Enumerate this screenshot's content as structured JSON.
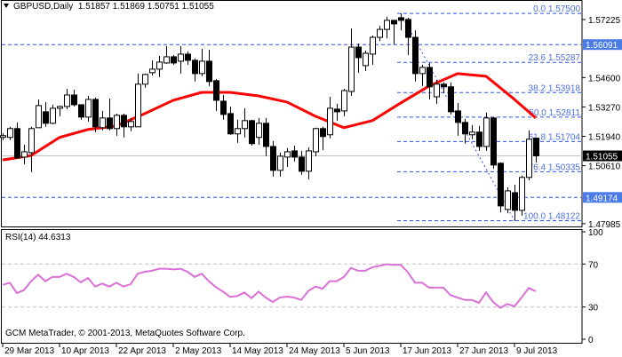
{
  "header": {
    "symbol_timeframe": "GBPUSD,Daily",
    "open": "1.51857",
    "high": "1.51869",
    "low": "1.50751",
    "close": "1.51055",
    "menu_icon": "triangle-down-icon"
  },
  "rsi": {
    "label": "RSI(14) 44.6313",
    "levels": [
      70,
      30
    ],
    "axis_ticks": [
      "100",
      "70",
      "30",
      "0"
    ]
  },
  "copyright": "GCM MetaTrader, © 2001-2013, MetaQuotes Software Corp.",
  "colors": {
    "ma": "#ff0000",
    "rsi": "#da70d6",
    "fibo": "#2b55e0",
    "fibo_text": "#4a6fe0",
    "hline_label": "#4a7be6",
    "price_label": "#000000",
    "grid_level": "#c0c0c0"
  },
  "chart_data": {
    "type": "candlestick",
    "title": "GBPUSD,Daily",
    "ylim": [
      1.4786,
      1.5807
    ],
    "price_ticks": [
      "1.57225",
      "1.54600",
      "1.53270",
      "1.51940",
      "1.50610",
      "1.47985"
    ],
    "x_tick_labels": [
      "29 Mar 2013",
      "10 Apr 2013",
      "22 Apr 2013",
      "2 May 2013",
      "14 May 2013",
      "24 May 2013",
      "5 Jun 2013",
      "17 Jun 2013",
      "27 Jun 2013",
      "9 Jul 2013"
    ],
    "x_tick_every": 8,
    "ohlc": [
      [
        1.5189,
        1.5208,
        1.5177,
        1.5197
      ],
      [
        1.5189,
        1.5237,
        1.5177,
        1.5229
      ],
      [
        1.5229,
        1.5257,
        1.5096,
        1.5096
      ],
      [
        1.51,
        1.5156,
        1.5068,
        1.5124
      ],
      [
        1.512,
        1.5237,
        1.5032,
        1.5229
      ],
      [
        1.5233,
        1.5361,
        1.5233,
        1.5333
      ],
      [
        1.5305,
        1.5349,
        1.5237,
        1.5253
      ],
      [
        1.5253,
        1.5337,
        1.5249,
        1.5321
      ],
      [
        1.5321,
        1.5333,
        1.5285,
        1.5329
      ],
      [
        1.5329,
        1.5409,
        1.5317,
        1.5381
      ],
      [
        1.5381,
        1.5405,
        1.5329,
        1.5337
      ],
      [
        1.5337,
        1.5337,
        1.5269,
        1.5281
      ],
      [
        1.5281,
        1.5377,
        1.5261,
        1.5361
      ],
      [
        1.5361,
        1.5369,
        1.5213,
        1.5237
      ],
      [
        1.5233,
        1.5309,
        1.5221,
        1.5277
      ],
      [
        1.5277,
        1.5365,
        1.5221,
        1.5229
      ],
      [
        1.5229,
        1.5297,
        1.5197,
        1.5289
      ],
      [
        1.5289,
        1.5297,
        1.5189,
        1.5237
      ],
      [
        1.5237,
        1.5277,
        1.5217,
        1.5261
      ],
      [
        1.5237,
        1.5478,
        1.5237,
        1.543
      ],
      [
        1.543,
        1.5478,
        1.5414,
        1.5474
      ],
      [
        1.5482,
        1.5538,
        1.547,
        1.5498
      ],
      [
        1.5498,
        1.5558,
        1.5462,
        1.553
      ],
      [
        1.5526,
        1.5602,
        1.5522,
        1.5554
      ],
      [
        1.5554,
        1.5562,
        1.5518,
        1.5526
      ],
      [
        1.5534,
        1.5602,
        1.5478,
        1.5566
      ],
      [
        1.5566,
        1.5578,
        1.5518,
        1.5538
      ],
      [
        1.5538,
        1.5546,
        1.5442,
        1.5478
      ],
      [
        1.5478,
        1.559,
        1.5466,
        1.5534
      ],
      [
        1.5534,
        1.5586,
        1.5422,
        1.5442
      ],
      [
        1.5446,
        1.5454,
        1.5309,
        1.5357
      ],
      [
        1.5353,
        1.5381,
        1.5269,
        1.5293
      ],
      [
        1.5297,
        1.5329,
        1.5201,
        1.5205
      ],
      [
        1.5205,
        1.5269,
        1.5165,
        1.5229
      ],
      [
        1.5229,
        1.5321,
        1.5189,
        1.5265
      ],
      [
        1.5265,
        1.5269,
        1.5152,
        1.5161
      ],
      [
        1.5189,
        1.5277,
        1.5156,
        1.5253
      ],
      [
        1.5253,
        1.5277,
        1.5104,
        1.5148
      ],
      [
        1.5148,
        1.5173,
        1.5012,
        1.504
      ],
      [
        1.504,
        1.512,
        1.5012,
        1.5104
      ],
      [
        1.51,
        1.514,
        1.5056,
        1.5124
      ],
      [
        1.5128,
        1.5152,
        1.508,
        1.51
      ],
      [
        1.51,
        1.5128,
        1.502,
        1.5036
      ],
      [
        1.5036,
        1.5144,
        1.4999,
        1.5128
      ],
      [
        1.5124,
        1.5233,
        1.5104,
        1.5229
      ],
      [
        1.5229,
        1.5237,
        1.5132,
        1.5193
      ],
      [
        1.5201,
        1.5373,
        1.5185,
        1.5321
      ],
      [
        1.5317,
        1.5341,
        1.5265,
        1.5305
      ],
      [
        1.5309,
        1.5409,
        1.5285,
        1.5401
      ],
      [
        1.5397,
        1.5682,
        1.5377,
        1.5598
      ],
      [
        1.5598,
        1.5614,
        1.5482,
        1.555
      ],
      [
        1.5514,
        1.5582,
        1.549,
        1.557
      ],
      [
        1.5566,
        1.565,
        1.5518,
        1.5642
      ],
      [
        1.5642,
        1.5694,
        1.5625,
        1.5678
      ],
      [
        1.5678,
        1.5735,
        1.5637,
        1.5719
      ],
      [
        1.5719,
        1.5719,
        1.561,
        1.5703
      ],
      [
        1.5731,
        1.575,
        1.5674,
        1.5719
      ],
      [
        1.5723,
        1.5731,
        1.5562,
        1.5642
      ],
      [
        1.5642,
        1.5674,
        1.5442,
        1.5478
      ],
      [
        1.5478,
        1.5518,
        1.5422,
        1.5506
      ],
      [
        1.5506,
        1.5526,
        1.5361,
        1.5418
      ],
      [
        1.5373,
        1.545,
        1.5341,
        1.543
      ],
      [
        1.543,
        1.5438,
        1.5389,
        1.5418
      ],
      [
        1.5418,
        1.5438,
        1.5293,
        1.5305
      ],
      [
        1.5309,
        1.5345,
        1.5197,
        1.5257
      ],
      [
        1.5257,
        1.5273,
        1.5161,
        1.5205
      ],
      [
        1.5201,
        1.5245,
        1.5181,
        1.5213
      ],
      [
        1.5213,
        1.5241,
        1.5128,
        1.5148
      ],
      [
        1.5148,
        1.5301,
        1.5128,
        1.5277
      ],
      [
        1.5277,
        1.5281,
        1.5048,
        1.5064
      ],
      [
        1.5072,
        1.5076,
        1.485,
        1.4879
      ],
      [
        1.4863,
        1.4963,
        1.4846,
        1.4947
      ],
      [
        1.4939,
        1.4975,
        1.4812,
        1.4859
      ],
      [
        1.4859,
        1.5016,
        1.4834,
        1.5008
      ],
      [
        1.5008,
        1.5221,
        1.4995,
        1.5181
      ],
      [
        1.51857,
        1.51869,
        1.50751,
        1.51055
      ]
    ],
    "moving_average": {
      "bar_index": [
        0,
        4,
        8,
        12,
        16,
        20,
        24,
        28,
        32,
        36,
        40,
        44,
        48,
        52,
        56,
        60,
        64,
        68,
        72,
        75
      ],
      "values": [
        1.5087,
        1.5107,
        1.5189,
        1.5225,
        1.5241,
        1.5297,
        1.5357,
        1.5393,
        1.5393,
        1.5377,
        1.5349,
        1.5285,
        1.5233,
        1.5265,
        1.5345,
        1.5422,
        1.5478,
        1.5466,
        1.5361,
        1.5277
      ]
    },
    "horizontal_lines": [
      {
        "price": 1.56091,
        "label": "1.56091"
      },
      {
        "price": 1.49174,
        "label": "1.49174"
      }
    ],
    "current_price": {
      "price": 1.51055,
      "label": "1.51055"
    },
    "fibonacci": {
      "from_bar": 56,
      "to_bar": 72,
      "high": 1.575,
      "low": 1.48122,
      "levels": [
        {
          "label": "0.0 1.57500",
          "price": 1.575
        },
        {
          "label": "23.6 1.55287",
          "price": 1.55287
        },
        {
          "label": "38.2 1.53918",
          "price": 1.53918
        },
        {
          "label": "50.0 1.52811",
          "price": 1.52811
        },
        {
          "label": "61.8 1.51704",
          "price": 1.51704
        },
        {
          "label": "76.4 1.50335",
          "price": 1.50335
        },
        {
          "label": "100.0 1.48122",
          "price": 1.48122
        }
      ]
    },
    "rsi_values": [
      50.7,
      52.6,
      43,
      45.7,
      54,
      60,
      54,
      58,
      58,
      61,
      58,
      53,
      57,
      49,
      51.8,
      49,
      52.6,
      49,
      51.2,
      61,
      62.8,
      63.7,
      65.6,
      65.6,
      65,
      65.6,
      62.8,
      58,
      61,
      54,
      48.5,
      44.3,
      39.4,
      40.2,
      43.5,
      38.3,
      44.3,
      38.8,
      34.7,
      38.8,
      39.7,
      38.8,
      36.6,
      44.9,
      49,
      47,
      54,
      54,
      58,
      66.4,
      63.7,
      63.7,
      67,
      68.3,
      69.7,
      69.2,
      69.2,
      62.3,
      52.6,
      52.6,
      48,
      48,
      48,
      41,
      38.8,
      36.6,
      36.6,
      33.9,
      43.5,
      34.7,
      29.2,
      32.8,
      30.6,
      38.8,
      47.7,
      44.6313
    ],
    "grid": false
  }
}
